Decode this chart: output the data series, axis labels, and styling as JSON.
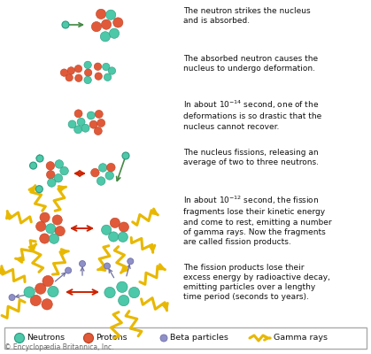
{
  "bg_color": "#ffffff",
  "neutron_color": "#4dc8a8",
  "neutron_edge": "#2a9a80",
  "proton_color": "#e05a3a",
  "proton_edge": "#c04020",
  "beta_color": "#9090c8",
  "beta_edge": "#7070a8",
  "gamma_color": "#e8b800",
  "arrow_color": "#cc2200",
  "neutron_arrow_color": "#448844",
  "text_color": "#111111",
  "legend_border": "#aaaaaa",
  "copyright_text": "© Encyclopædia Britannica, Inc.",
  "step_texts": [
    "The neutron strikes the nucleus\nand is absorbed.",
    "The absorbed neutron causes the\nnucleus to undergo deformation.",
    "In about 10$^{-14}$ second, one of the\ndeformations is so drastic that the\nnucleus cannot recover.",
    "The nucleus fissions, releasing an\naverage of two to three neutrons.",
    "In about 10$^{-12}$ second, the fission\nfragments lose their kinetic energy\nand come to rest, emitting a number\nof gamma rays. Now the fragments\nare called fission products.",
    "The fission products lose their\nexcess energy by radioactive decay,\nemitting particles over a lengthy\ntime period (seconds to years)."
  ],
  "figsize": [
    4.19,
    4.0
  ],
  "dpi": 100
}
